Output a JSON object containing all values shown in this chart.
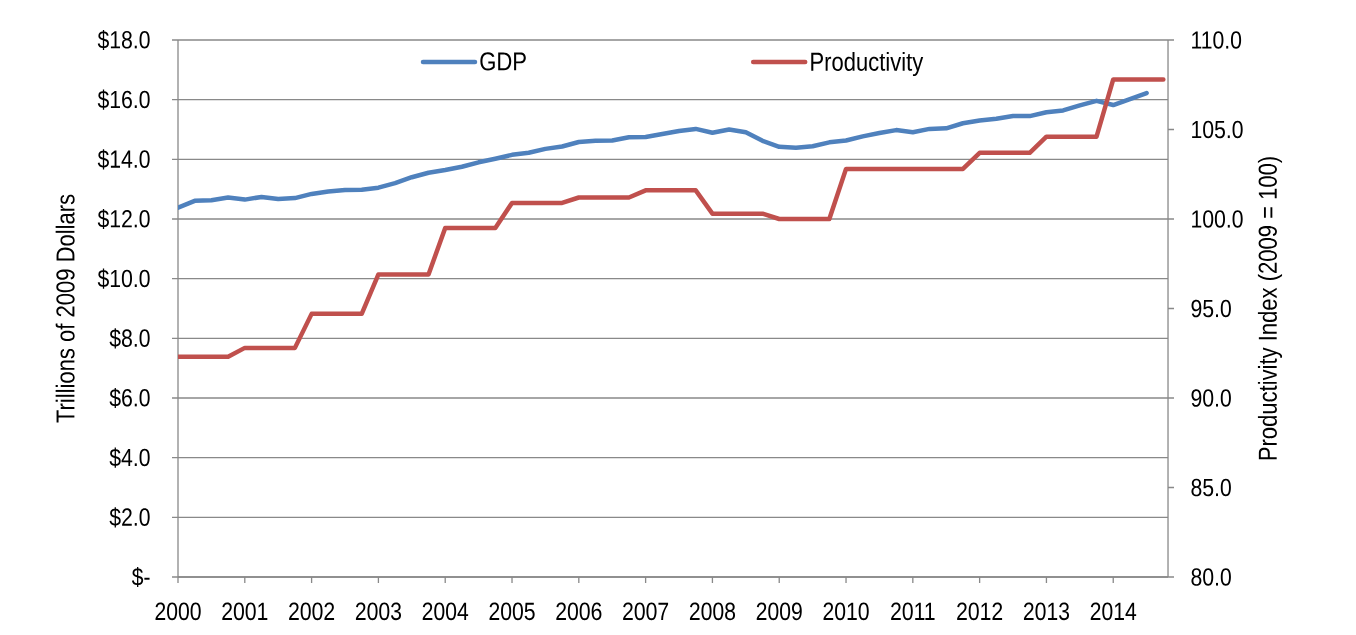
{
  "chart_data": {
    "type": "line",
    "ylabel": "Trillions of 2009 Dollars",
    "y2label": "Productivity Index (2009 = 100)",
    "x": [
      2000,
      2000.25,
      2000.5,
      2000.75,
      2001,
      2001.25,
      2001.5,
      2001.75,
      2002,
      2002.25,
      2002.5,
      2002.75,
      2003,
      2003.25,
      2003.5,
      2003.75,
      2004,
      2004.25,
      2004.5,
      2004.75,
      2005,
      2005.25,
      2005.5,
      2005.75,
      2006,
      2006.25,
      2006.5,
      2006.75,
      2007,
      2007.25,
      2007.5,
      2007.75,
      2008,
      2008.25,
      2008.5,
      2008.75,
      2009,
      2009.25,
      2009.5,
      2009.75,
      2010,
      2010.25,
      2010.5,
      2010.75,
      2011,
      2011.25,
      2011.5,
      2011.75,
      2012,
      2012.25,
      2012.5,
      2012.75,
      2013,
      2013.25,
      2013.5,
      2013.75,
      2014,
      2014.25,
      2014.5,
      2014.75
    ],
    "xlim": [
      2000,
      2014.82
    ],
    "xticks": [
      2000,
      2001,
      2002,
      2003,
      2004,
      2005,
      2006,
      2007,
      2008,
      2009,
      2010,
      2011,
      2012,
      2013,
      2014
    ],
    "ylim": [
      0,
      18
    ],
    "yticks": [
      {
        "value": 0,
        "label": "$-"
      },
      {
        "value": 2,
        "label": "$2.0"
      },
      {
        "value": 4,
        "label": "$4.0"
      },
      {
        "value": 6,
        "label": "$6.0"
      },
      {
        "value": 8,
        "label": "$8.0"
      },
      {
        "value": 10,
        "label": "$10.0"
      },
      {
        "value": 12,
        "label": "$12.0"
      },
      {
        "value": 14,
        "label": "$14.0"
      },
      {
        "value": 16,
        "label": "$16.0"
      },
      {
        "value": 18,
        "label": "$18.0"
      }
    ],
    "y2lim": [
      80,
      110
    ],
    "y2ticks": [
      {
        "value": 80,
        "label": "80.0"
      },
      {
        "value": 85,
        "label": "85.0"
      },
      {
        "value": 90,
        "label": "90.0"
      },
      {
        "value": 95,
        "label": "95.0"
      },
      {
        "value": 100,
        "label": "100.0"
      },
      {
        "value": 105,
        "label": "105.0"
      },
      {
        "value": 110,
        "label": "110.0"
      }
    ],
    "grid": "y",
    "legend": "top",
    "marker": "none",
    "line_style": "solid",
    "series": [
      {
        "name": "GDP",
        "color": "#4f81bd",
        "values": [
          12.38,
          12.61,
          12.63,
          12.72,
          12.65,
          12.74,
          12.67,
          12.7,
          12.84,
          12.92,
          12.97,
          12.98,
          13.05,
          13.2,
          13.4,
          13.55,
          13.64,
          13.75,
          13.9,
          14.02,
          14.15,
          14.22,
          14.35,
          14.43,
          14.58,
          14.62,
          14.63,
          14.74,
          14.75,
          14.85,
          14.95,
          15.02,
          14.89,
          15.0,
          14.91,
          14.62,
          14.42,
          14.39,
          14.44,
          14.57,
          14.63,
          14.77,
          14.88,
          14.98,
          14.91,
          15.02,
          15.04,
          15.21,
          15.3,
          15.36,
          15.45,
          15.45,
          15.58,
          15.64,
          15.81,
          15.96,
          15.82,
          16.02,
          16.22,
          null
        ]
      },
      {
        "name": "Productivity",
        "color": "#c0504d",
        "axis": "y2",
        "values": [
          92.3,
          92.3,
          92.3,
          92.3,
          92.8,
          92.8,
          92.8,
          92.8,
          94.7,
          94.7,
          94.7,
          94.7,
          96.9,
          96.9,
          96.9,
          96.9,
          99.5,
          99.5,
          99.5,
          99.5,
          100.9,
          100.9,
          100.9,
          100.9,
          101.2,
          101.2,
          101.2,
          101.2,
          101.6,
          101.6,
          101.6,
          101.6,
          100.3,
          100.3,
          100.3,
          100.3,
          100.0,
          100.0,
          100.0,
          100.0,
          102.8,
          102.8,
          102.8,
          102.8,
          102.8,
          102.8,
          102.8,
          102.8,
          103.7,
          103.7,
          103.7,
          103.7,
          104.6,
          104.6,
          104.6,
          104.6,
          107.8,
          107.8,
          107.8,
          107.8
        ]
      }
    ]
  }
}
